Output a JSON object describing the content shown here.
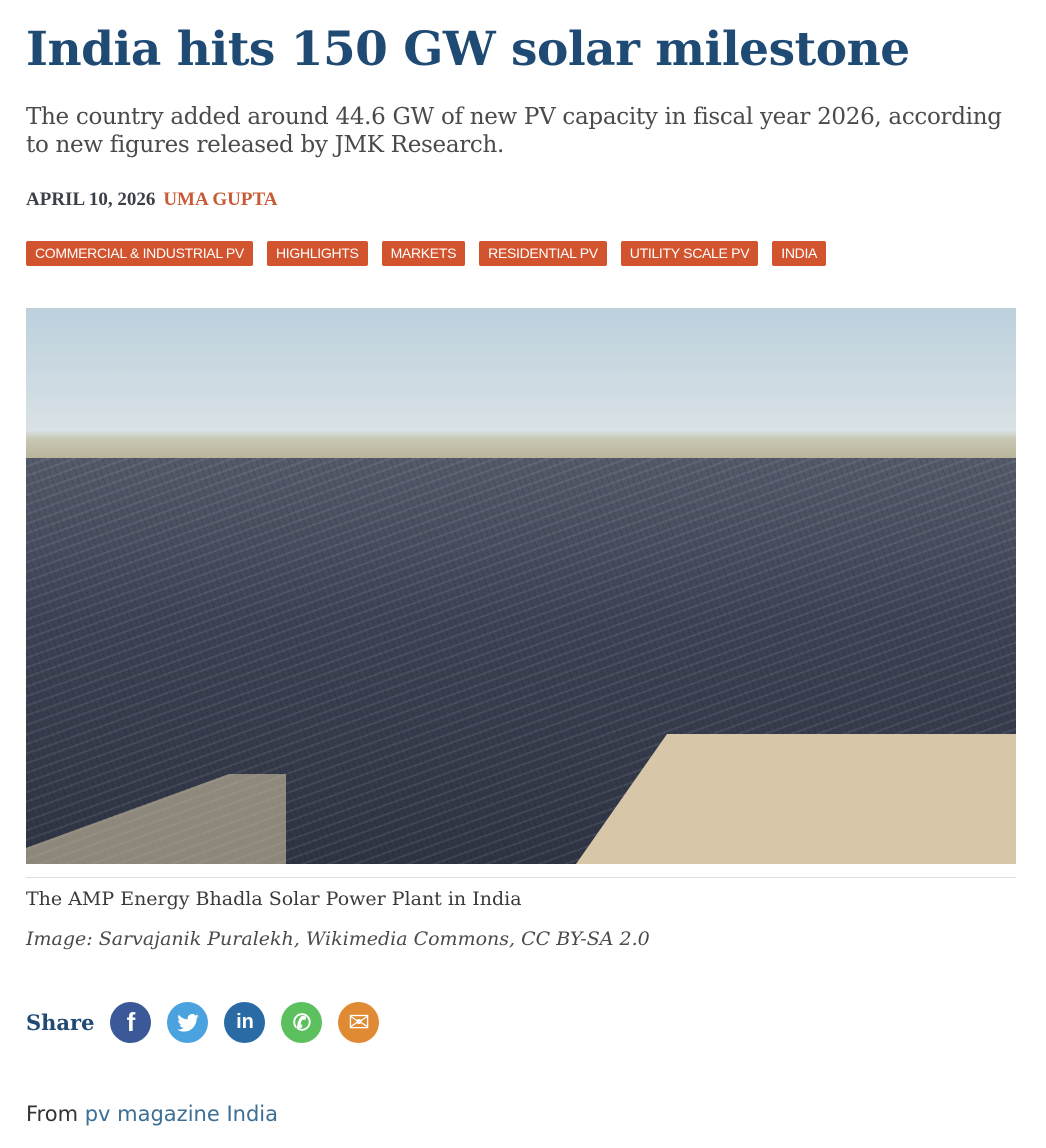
{
  "article": {
    "title": "India hits 150 GW solar milestone",
    "subtitle": "The country added around 44.6 GW of new PV capacity in fiscal year 2026, according to new figures released by JMK Research.",
    "date": "APRIL 10, 2026",
    "author": "UMA GUPTA",
    "tags": [
      "COMMERCIAL & INDUSTRIAL PV",
      "HIGHLIGHTS",
      "MARKETS",
      "RESIDENTIAL PV",
      "UTILITY SCALE PV",
      "INDIA"
    ],
    "caption": "The AMP Energy Bhadla Solar Power Plant in India",
    "credit": "Image: Sarvajanik Puralekh, Wikimedia Commons, CC BY-SA 2.0"
  },
  "share": {
    "label": "Share",
    "icons": [
      {
        "name": "facebook-icon",
        "glyph": "f",
        "color": "#3b5998"
      },
      {
        "name": "twitter-icon",
        "glyph": "🐦",
        "color": "#4aa3df"
      },
      {
        "name": "linkedin-icon",
        "glyph": "in",
        "color": "#2a6aa5"
      },
      {
        "name": "whatsapp-icon",
        "glyph": "✆",
        "color": "#5cc05f"
      },
      {
        "name": "email-icon",
        "glyph": "✉",
        "color": "#e08a33"
      }
    ]
  },
  "source": {
    "prefix": "From",
    "link": "pv magazine India"
  },
  "colors": {
    "title": "#1f4a74",
    "accent": "#d2542f"
  }
}
